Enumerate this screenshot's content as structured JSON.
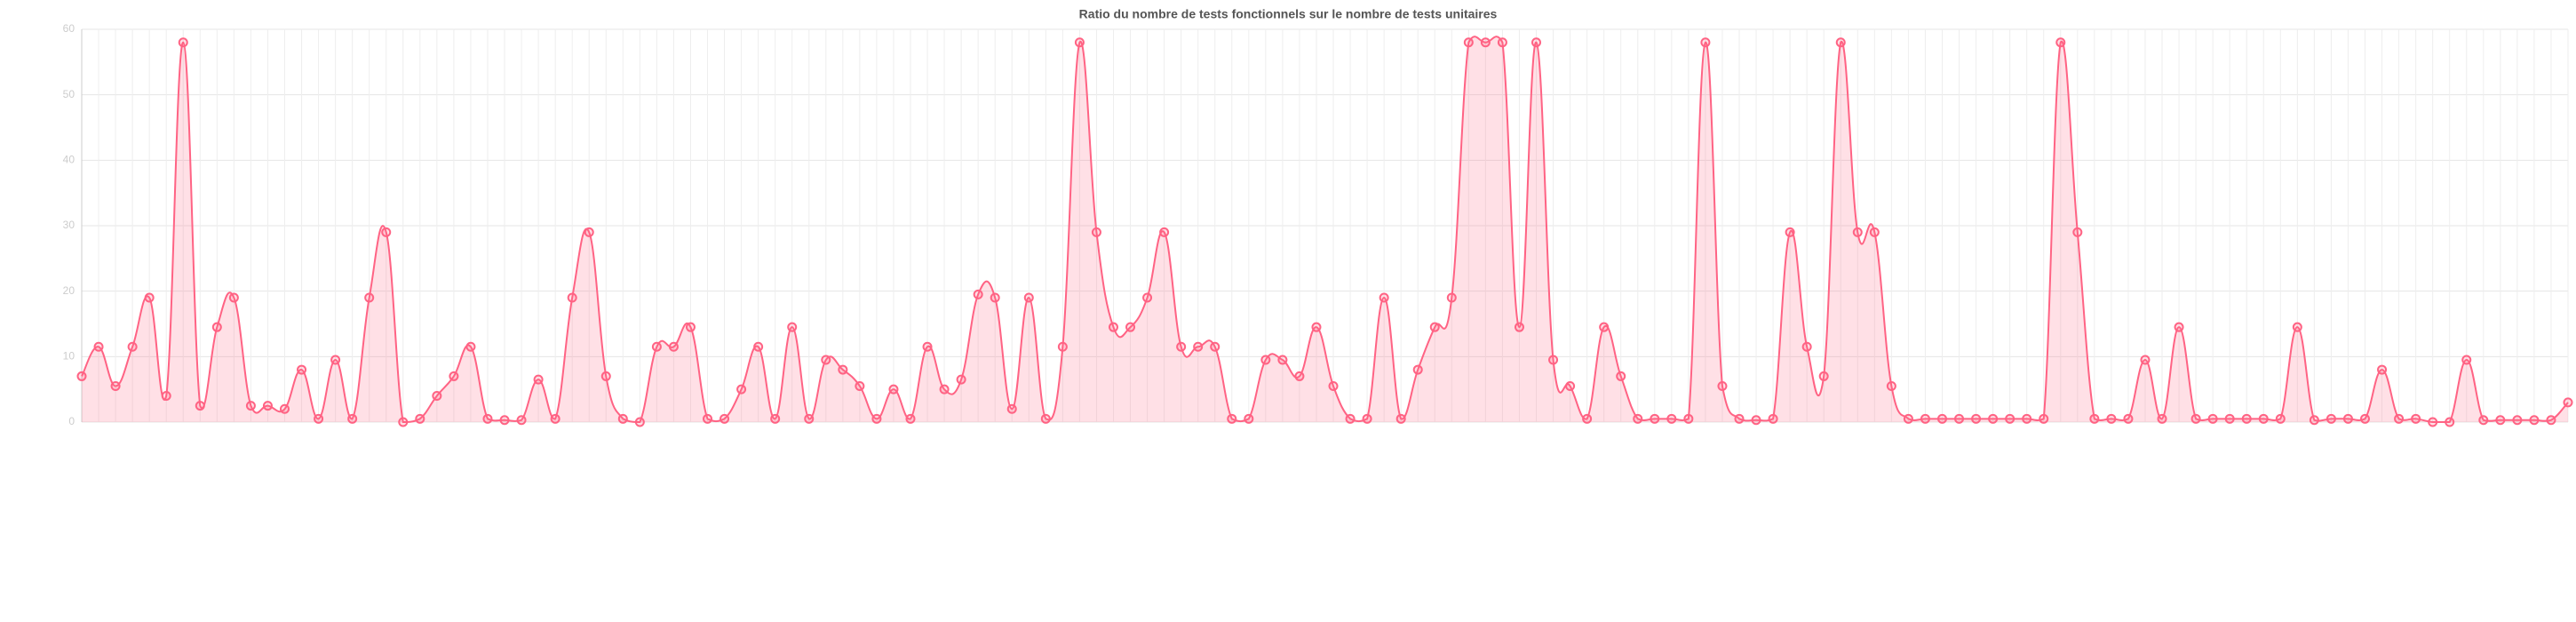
{
  "chart_data": {
    "type": "line",
    "title": "Ratio du nombre de tests fonctionnels sur le nombre de tests unitaires",
    "categories": [
      null,
      null,
      null,
      null,
      null,
      null,
      null,
      null,
      null,
      null,
      null,
      null,
      null,
      null,
      null,
      null,
      null,
      null,
      null,
      null,
      null,
      null,
      null,
      null,
      null,
      null,
      null,
      null,
      null,
      null,
      null,
      null,
      null,
      null,
      null,
      null,
      null,
      null,
      null,
      null,
      null,
      null,
      null,
      null,
      null,
      null,
      null,
      null,
      null,
      null,
      null,
      null,
      null,
      null,
      null,
      null,
      null,
      null,
      null,
      null,
      null,
      null,
      null,
      null,
      null,
      null,
      null,
      null,
      null,
      null,
      null,
      null,
      null,
      null,
      null,
      null,
      null,
      null,
      null,
      null,
      null,
      null,
      null,
      null,
      null,
      null,
      null,
      null,
      null,
      null,
      null,
      null,
      null,
      null,
      null,
      null,
      null,
      null,
      null,
      null,
      null,
      null,
      null,
      null,
      null,
      null,
      null,
      null,
      null,
      null,
      null,
      null,
      null,
      null,
      null,
      null,
      null,
      null,
      null,
      null,
      null,
      null,
      null,
      null,
      null,
      null,
      null,
      null,
      null,
      null,
      null,
      null,
      null,
      null,
      null,
      null,
      null,
      null,
      null,
      null,
      null,
      null,
      null,
      null,
      null,
      null,
      null,
      null
    ],
    "values": [
      7,
      11.5,
      5.5,
      11.5,
      19,
      4,
      58,
      2.5,
      14.5,
      19,
      2.5,
      2.5,
      2,
      8,
      0.5,
      9.5,
      0.5,
      19,
      29,
      0,
      0.5,
      4,
      7,
      11.5,
      0.5,
      0.3,
      0.3,
      6.5,
      0.5,
      19,
      29,
      7,
      0.5,
      0,
      11.5,
      11.5,
      14.5,
      0.5,
      0.5,
      5,
      11.5,
      0.5,
      14.5,
      0.5,
      9.5,
      8,
      5.5,
      0.5,
      5,
      0.5,
      11.5,
      5,
      6.5,
      19.5,
      19,
      2,
      19,
      0.5,
      11.5,
      58,
      29,
      14.5,
      14.5,
      19,
      29,
      11.5,
      11.5,
      11.5,
      0.5,
      0.5,
      9.5,
      9.5,
      7,
      14.5,
      5.5,
      0.5,
      0.5,
      19,
      0.5,
      8,
      14.5,
      19,
      58,
      58,
      58,
      14.5,
      58,
      9.5,
      5.5,
      0.5,
      14.5,
      7,
      0.5,
      0.5,
      0.5,
      0.5,
      58,
      5.5,
      0.5,
      0.3,
      0.5,
      29,
      11.5,
      7,
      58,
      29,
      29,
      5.5,
      0.5,
      0.5,
      0.5,
      0.5,
      0.5,
      0.5,
      0.5,
      0.5,
      0.5,
      58,
      29,
      0.5,
      0.5,
      0.5,
      9.5,
      0.5,
      14.5,
      0.5,
      0.5,
      0.5,
      0.5,
      0.5,
      0.5,
      14.5,
      0.3,
      0.5,
      0.5,
      0.5,
      8,
      0.5,
      0.5,
      0,
      0,
      9.5,
      0.3,
      0.3,
      0.3,
      0.3,
      0.3,
      3
    ],
    "color": "#ff6384",
    "ylim": [
      0,
      60
    ],
    "yticks": [
      0,
      10,
      20,
      30,
      40,
      50,
      60
    ],
    "grid": true
  }
}
